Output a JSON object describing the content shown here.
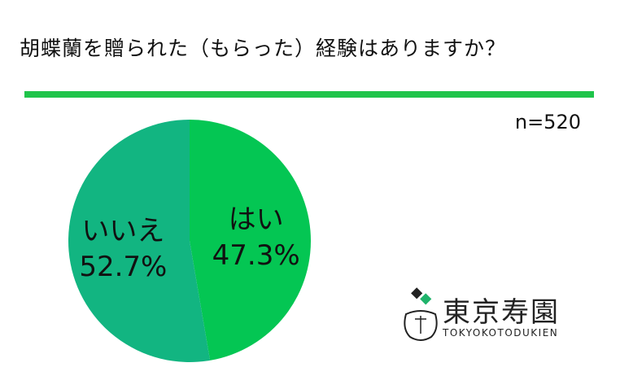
{
  "header": {
    "title": "胡蝶蘭を贈られた（もらった）経験はありますか？",
    "sample_size": "n=520"
  },
  "colors": {
    "rule": "#1fc44a",
    "slice_yes": "#04c653",
    "slice_no": "#12b581"
  },
  "logo": {
    "name": "東京寿園",
    "romanized": "TOKYOKOTODUKIEN"
  },
  "chart_data": {
    "type": "pie",
    "title": "胡蝶蘭を贈られた（もらった）経験はありますか？",
    "slices": [
      {
        "label": "はい",
        "value": 47.3,
        "value_label": "47.3%"
      },
      {
        "label": "いいえ",
        "value": 52.7,
        "value_label": "52.7%"
      }
    ],
    "start": "12 o'clock, clockwise",
    "legend": "none"
  }
}
